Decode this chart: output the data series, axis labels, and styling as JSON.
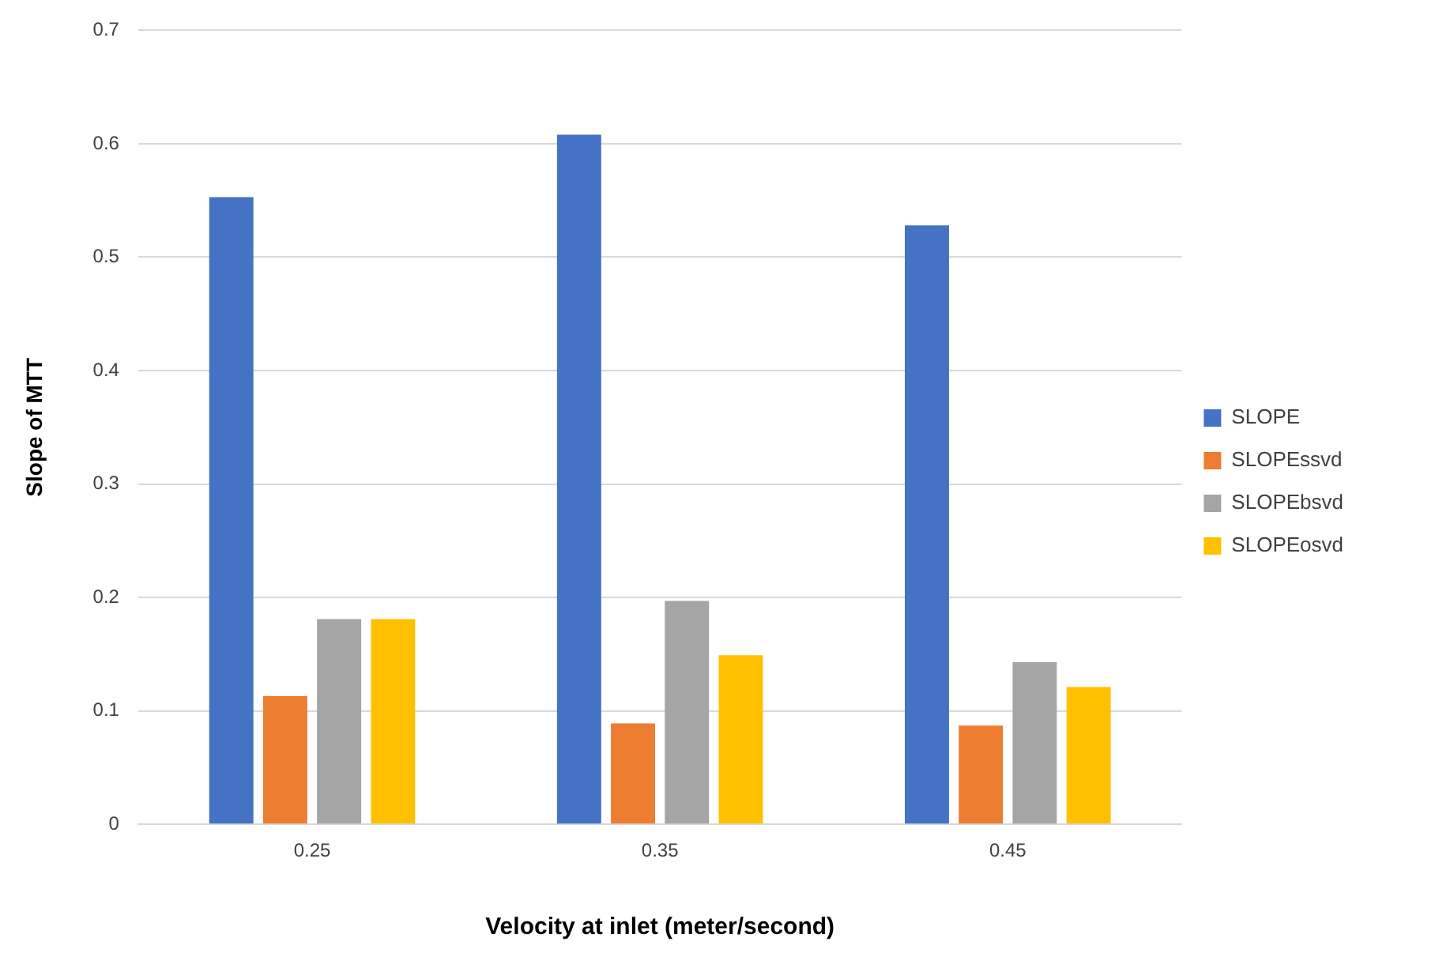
{
  "chart_data": {
    "type": "bar",
    "xlabel": "Velocity at inlet (meter/second)",
    "ylabel": "Slope of MTT",
    "categories": [
      "0.25",
      "0.35",
      "0.45"
    ],
    "series": [
      {
        "name": "SLOPE",
        "color": "#4472c4",
        "values": [
          0.553,
          0.608,
          0.528
        ]
      },
      {
        "name": "SLOPEssvd",
        "color": "#ed7d31",
        "values": [
          0.113,
          0.089,
          0.087
        ]
      },
      {
        "name": "SLOPEbsvd",
        "color": "#a5a5a5",
        "values": [
          0.181,
          0.197,
          0.143
        ]
      },
      {
        "name": "SLOPEosvd",
        "color": "#ffc000",
        "values": [
          0.181,
          0.149,
          0.121
        ]
      }
    ],
    "ylim": [
      0,
      0.7
    ],
    "yticks": [
      0,
      0.1,
      0.2,
      0.3,
      0.4,
      0.5,
      0.6,
      0.7
    ],
    "grid": "y",
    "legend": "right"
  }
}
